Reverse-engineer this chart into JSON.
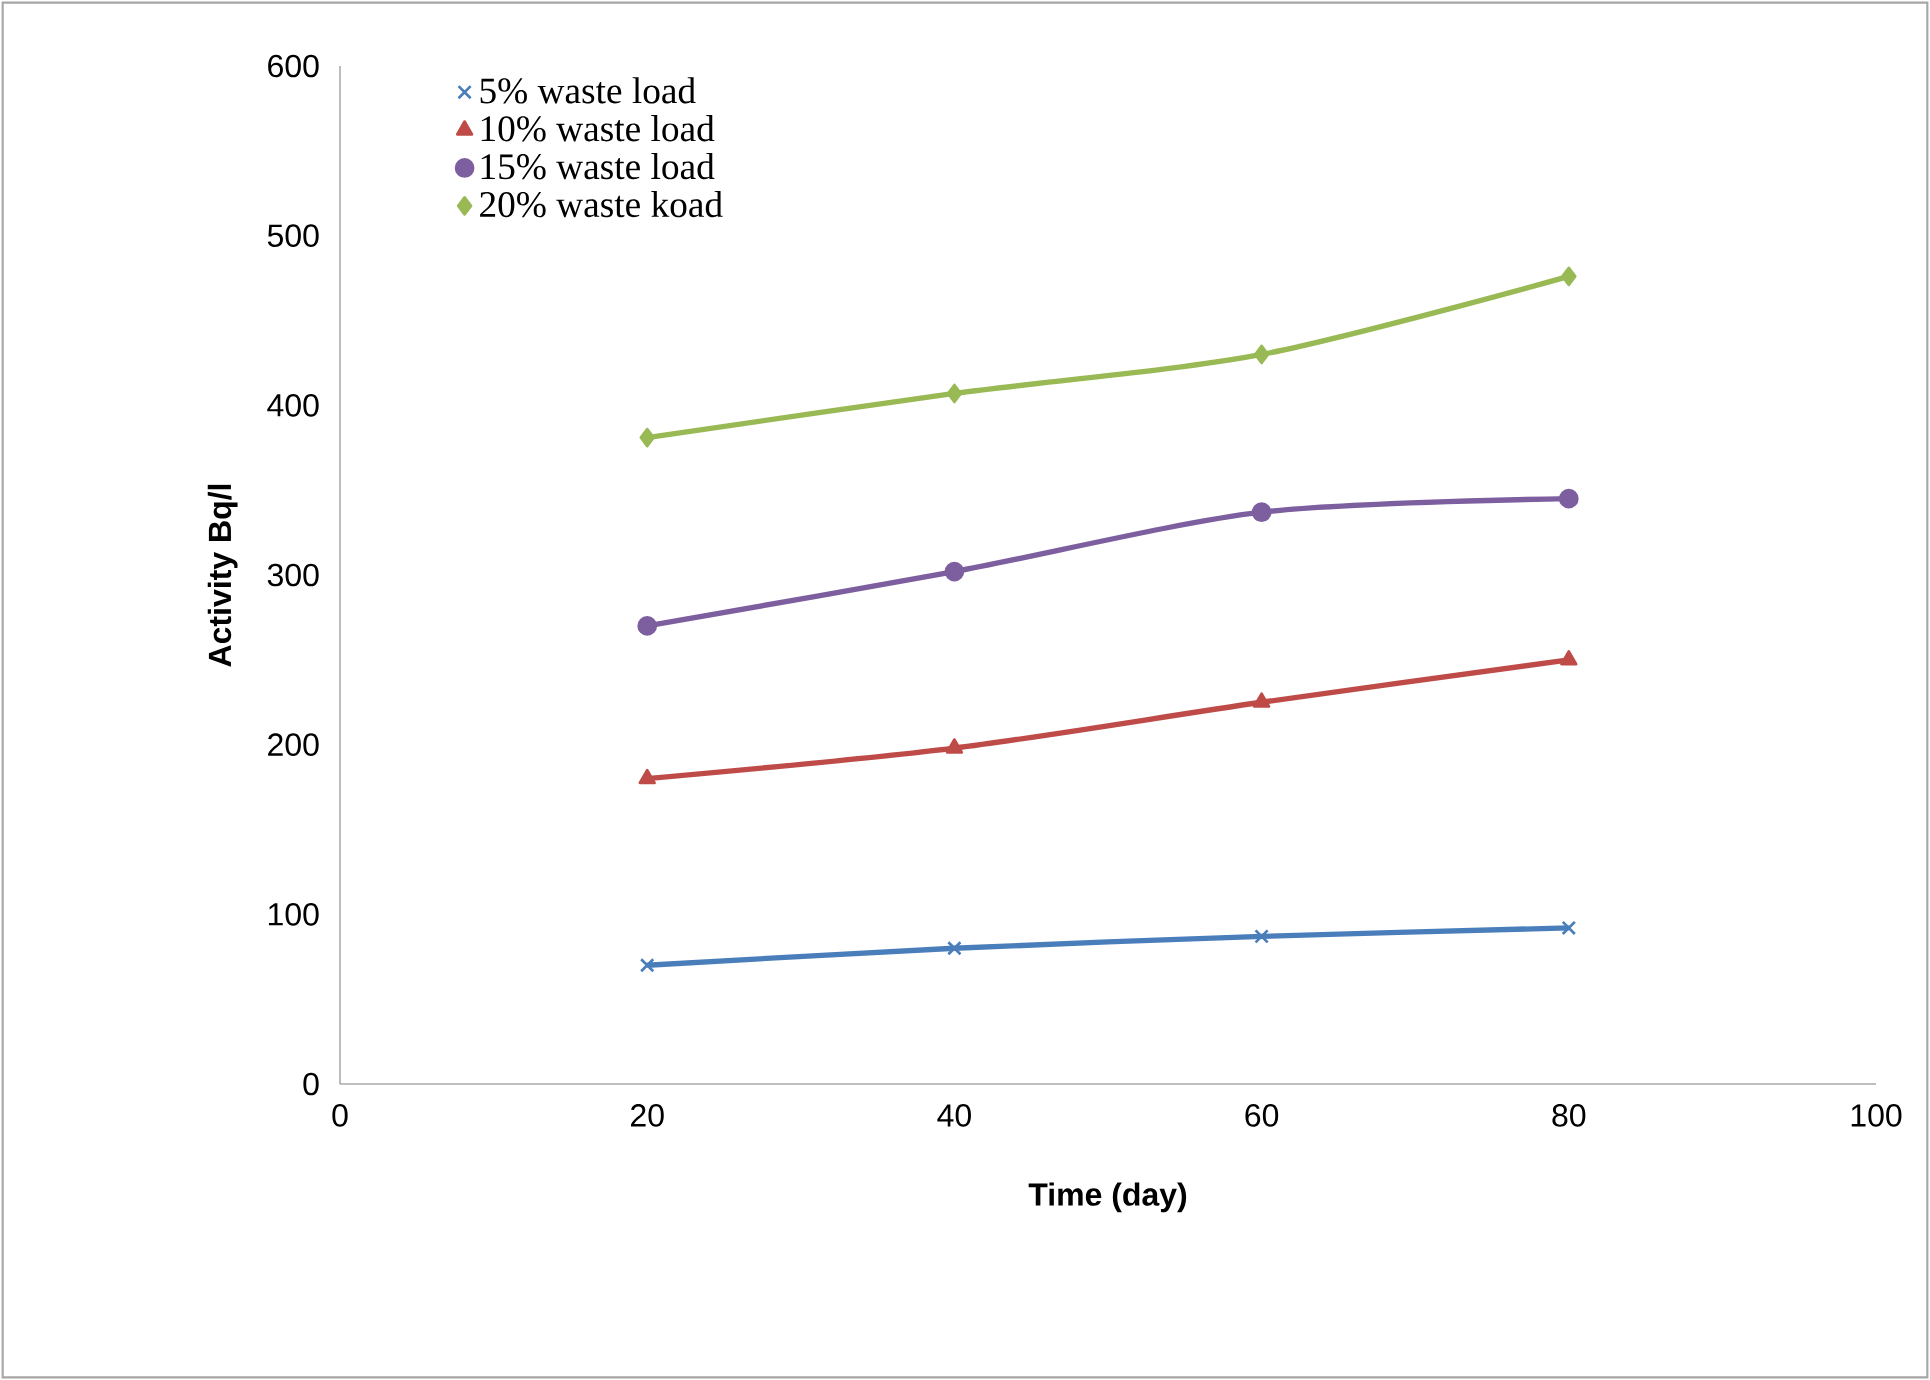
{
  "chart_data": {
    "type": "line",
    "xlabel": "Time (day)",
    "ylabel": "Activity Bq/l",
    "xlim": [
      0,
      100
    ],
    "ylim": [
      0,
      600
    ],
    "xticks": [
      0,
      20,
      40,
      60,
      80,
      100
    ],
    "yticks": [
      0,
      100,
      200,
      300,
      400,
      500,
      600
    ],
    "legend": "top left",
    "grid": false,
    "line_style": "solid",
    "series": [
      {
        "name": "5% waste load",
        "color": "#4a7ebb",
        "marker": "cross",
        "x": [
          20,
          40,
          60,
          80
        ],
        "values": [
          70,
          80,
          87,
          92
        ]
      },
      {
        "name": "10% waste load",
        "color": "#be4b48",
        "marker": "triangle",
        "x": [
          20,
          40,
          60,
          80
        ],
        "values": [
          180,
          198,
          225,
          250
        ]
      },
      {
        "name": "15% waste load",
        "color": "#7d5fa0",
        "marker": "circle",
        "x": [
          20,
          40,
          60,
          80
        ],
        "values": [
          270,
          302,
          337,
          345
        ]
      },
      {
        "name": "20% waste koad",
        "color": "#98b954",
        "marker": "diamond",
        "x": [
          20,
          40,
          60,
          80
        ],
        "values": [
          381,
          407,
          430,
          476
        ]
      }
    ]
  }
}
